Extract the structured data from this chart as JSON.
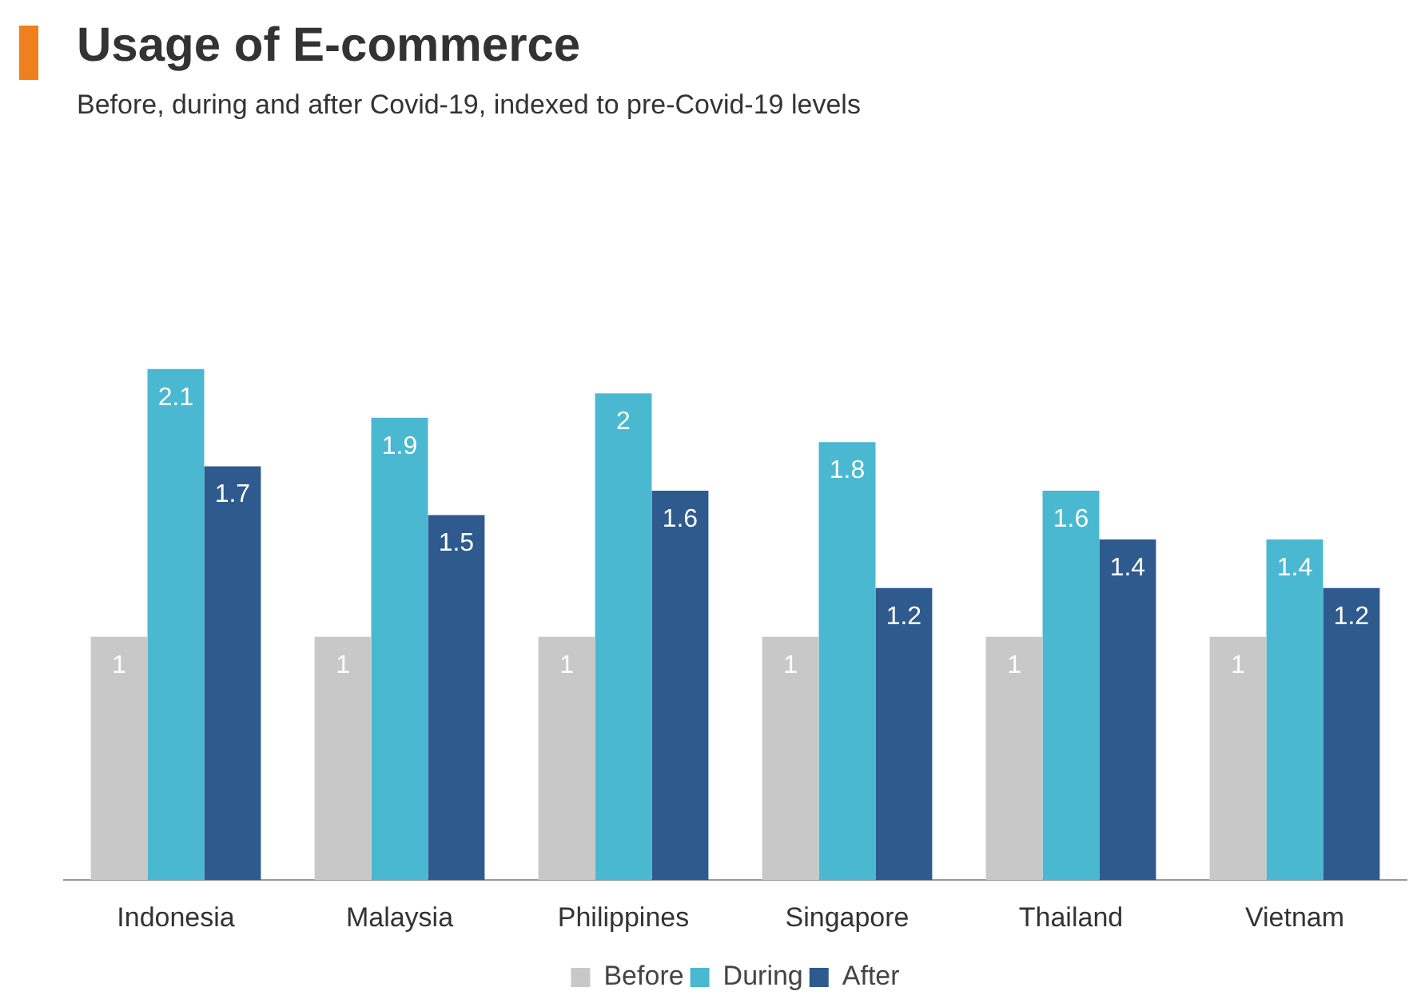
{
  "chart_data": {
    "type": "bar",
    "title": "Usage of E-commerce",
    "subtitle": "Before, during and after Covid-19, indexed to pre-Covid-19 levels",
    "categories": [
      "Indonesia",
      "Malaysia",
      "Philippines",
      "Singapore",
      "Thailand",
      "Vietnam"
    ],
    "series": [
      {
        "name": "Before",
        "color": "#c8c8c8",
        "values": [
          1,
          1,
          1,
          1,
          1,
          1
        ]
      },
      {
        "name": "During",
        "color": "#4ab8d0",
        "values": [
          2.1,
          1.9,
          2,
          1.8,
          1.6,
          1.4
        ]
      },
      {
        "name": "After",
        "color": "#2e5a8e",
        "values": [
          1.7,
          1.5,
          1.6,
          1.2,
          1.4,
          1.2
        ]
      }
    ],
    "data_labels": true,
    "grid": false,
    "legend": "bottom"
  }
}
